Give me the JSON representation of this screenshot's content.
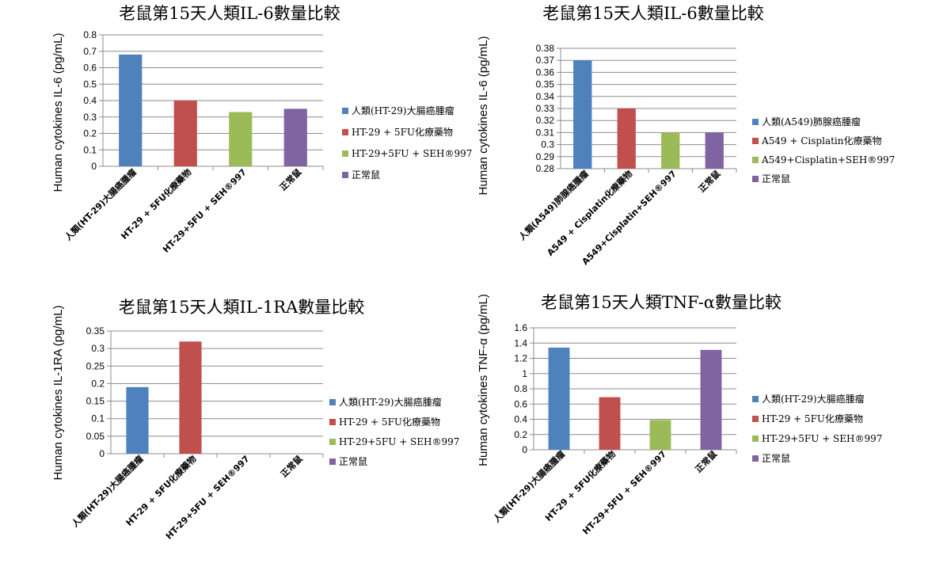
{
  "chart_data": [
    {
      "type": "bar",
      "title": "老鼠第15天人類IL-6數量比較",
      "ylabel": "Human cytokines IL-6 (pg/mL)",
      "categories": [
        "人類(HT-29)大腸癌腫瘤",
        "HT-29 + 5FU化療藥物",
        "HT-29+5FU + SEH®997",
        "正常鼠"
      ],
      "values": [
        0.68,
        0.4,
        0.33,
        0.35
      ],
      "colors": [
        "#4f81bd",
        "#c0504d",
        "#9bbb59",
        "#8064a2"
      ],
      "ylim": [
        0,
        0.8
      ],
      "ystep": 0.1,
      "yticks": [
        "0",
        "0.1",
        "0.2",
        "0.3",
        "0.4",
        "0.5",
        "0.6",
        "0.7",
        "0.8"
      ],
      "legend": [
        "人類(HT-29)大腸癌腫瘤",
        "HT-29 + 5FU化療藥物",
        "HT-29+5FU + SEH®997",
        "正常鼠"
      ],
      "legend_position": "right",
      "grid": true
    },
    {
      "type": "bar",
      "title": "老鼠第15天人類IL-6數量比較",
      "ylabel": "Human cytokines IL-6 (pg/mL)",
      "categories": [
        "人類(A549)肺腺癌腫瘤",
        "A549 + Cisplatin化療藥物",
        "A549+Cisplatin+SEH®997",
        "正常鼠"
      ],
      "values": [
        0.37,
        0.33,
        0.31,
        0.31
      ],
      "colors": [
        "#4f81bd",
        "#c0504d",
        "#9bbb59",
        "#8064a2"
      ],
      "ylim": [
        0.28,
        0.38
      ],
      "ystep": 0.01,
      "yticks": [
        "0.28",
        "0.29",
        "0.3",
        "0.31",
        "0.32",
        "0.33",
        "0.34",
        "0.35",
        "0.36",
        "0.37",
        "0.38"
      ],
      "legend": [
        "人類(A549)肺腺癌腫瘤",
        "A549 + Cisplatin化療藥物",
        "A549+Cisplatin+SEH®997",
        "正常鼠"
      ],
      "legend_position": "right",
      "grid": true
    },
    {
      "type": "bar",
      "title": "老鼠第15天人類IL-1RA數量比較",
      "ylabel": "Human cytokines IL-1RA (pg/mL)",
      "categories": [
        "人類(HT-29)大腸癌腫瘤",
        "HT-29 + 5FU化療藥物",
        "HT-29+5FU + SEH®997",
        "正常鼠"
      ],
      "values": [
        0.19,
        0.32,
        0,
        0
      ],
      "colors": [
        "#4f81bd",
        "#c0504d",
        "#9bbb59",
        "#8064a2"
      ],
      "ylim": [
        0,
        0.35
      ],
      "ystep": 0.05,
      "yticks": [
        "0",
        "0.05",
        "0.1",
        "0.15",
        "0.2",
        "0.25",
        "0.3",
        "0.35"
      ],
      "legend": [
        "人類(HT-29)大腸癌腫瘤",
        "HT-29 + 5FU化療藥物",
        "HT-29+5FU + SEH®997",
        "正常鼠"
      ],
      "legend_position": "right",
      "grid": true
    },
    {
      "type": "bar",
      "title": "老鼠第15天人類TNF-α數量比較",
      "ylabel": "Human cytokines TNF-α (pg/mL)",
      "categories": [
        "人類(HT-29)大腸癌腫瘤",
        "HT-29 + 5FU化療藥物",
        "HT-29+5FU + SEH®997",
        "正常鼠"
      ],
      "values": [
        1.34,
        0.69,
        0.39,
        1.31
      ],
      "colors": [
        "#4f81bd",
        "#c0504d",
        "#9bbb59",
        "#8064a2"
      ],
      "ylim": [
        0,
        1.6
      ],
      "ystep": 0.2,
      "yticks": [
        "0",
        "0.2",
        "0.4",
        "0.6",
        "0.8",
        "1",
        "1.2",
        "1.4",
        "1.6"
      ],
      "legend": [
        "人類(HT-29)大腸癌腫瘤",
        "HT-29 + 5FU化療藥物",
        "HT-29+5FU + SEH®997",
        "正常鼠"
      ],
      "legend_position": "right",
      "grid": true
    }
  ]
}
